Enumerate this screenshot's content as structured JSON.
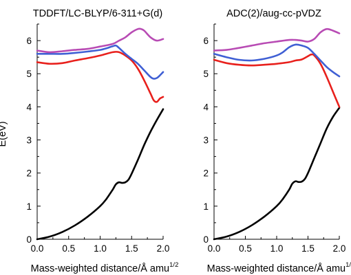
{
  "y_axis_label": "E(eV)",
  "chart_data": [
    {
      "type": "line",
      "title": "TDDFT/LC-BLYP/6-311+G(d)",
      "xlabel": "Mass-weighted distance/Å amu",
      "xlabel_sup": "1/2",
      "ylabel": "E(eV)",
      "xlim": [
        0,
        2.0
      ],
      "ylim": [
        0,
        6.5
      ],
      "xticks": [
        "0.0",
        "0.5",
        "1.0",
        "1.5",
        "2.0"
      ],
      "yticks": [
        "0",
        "1",
        "2",
        "3",
        "4",
        "5",
        "6"
      ],
      "show_y_labels": true,
      "grid": false,
      "series": [
        {
          "color": "#000000",
          "x": [
            0,
            0.2,
            0.4,
            0.6,
            0.8,
            1.0,
            1.1,
            1.2,
            1.25,
            1.3,
            1.35,
            1.4,
            1.45,
            1.5,
            1.6,
            1.7,
            1.8,
            1.9,
            2.0
          ],
          "y": [
            0,
            0.08,
            0.22,
            0.42,
            0.68,
            1.0,
            1.22,
            1.5,
            1.66,
            1.72,
            1.7,
            1.72,
            1.8,
            1.98,
            2.4,
            2.85,
            3.25,
            3.6,
            3.93
          ]
        },
        {
          "color": "#e8201c",
          "x": [
            0,
            0.2,
            0.4,
            0.6,
            0.8,
            1.0,
            1.2,
            1.3,
            1.4,
            1.5,
            1.6,
            1.7,
            1.8,
            1.85,
            1.9,
            1.95,
            2.0
          ],
          "y": [
            5.35,
            5.3,
            5.32,
            5.4,
            5.47,
            5.55,
            5.65,
            5.65,
            5.55,
            5.4,
            5.15,
            4.8,
            4.4,
            4.2,
            4.15,
            4.25,
            4.3
          ]
        },
        {
          "color": "#3f5fd4",
          "x": [
            0,
            0.2,
            0.4,
            0.6,
            0.8,
            1.0,
            1.1,
            1.2,
            1.25,
            1.3,
            1.4,
            1.5,
            1.6,
            1.7,
            1.8,
            1.85,
            1.9,
            1.95,
            2.0
          ],
          "y": [
            5.6,
            5.6,
            5.6,
            5.63,
            5.67,
            5.72,
            5.77,
            5.83,
            5.85,
            5.78,
            5.6,
            5.45,
            5.3,
            5.1,
            4.9,
            4.85,
            4.87,
            4.95,
            5.05
          ]
        },
        {
          "color": "#b84bb4",
          "x": [
            0,
            0.2,
            0.4,
            0.6,
            0.8,
            1.0,
            1.2,
            1.3,
            1.4,
            1.5,
            1.6,
            1.65,
            1.7,
            1.8,
            1.9,
            2.0
          ],
          "y": [
            5.7,
            5.65,
            5.68,
            5.72,
            5.75,
            5.82,
            5.9,
            6.0,
            6.1,
            6.25,
            6.35,
            6.35,
            6.3,
            6.1,
            6.0,
            6.05
          ]
        }
      ]
    },
    {
      "type": "line",
      "title": "ADC(2)/aug-cc-pVDZ",
      "xlabel": "Mass-weighted distance/Å amu",
      "xlabel_sup": "1/2",
      "ylabel": "",
      "xlim": [
        0,
        2.0
      ],
      "ylim": [
        0,
        6.5
      ],
      "xticks": [
        "0.0",
        "0.5",
        "1.0",
        "1.5",
        "2.0"
      ],
      "yticks": [
        "0",
        "1",
        "2",
        "3",
        "4",
        "5",
        "6"
      ],
      "show_y_labels": true,
      "grid": false,
      "series": [
        {
          "color": "#000000",
          "x": [
            0,
            0.2,
            0.4,
            0.6,
            0.8,
            1.0,
            1.1,
            1.2,
            1.25,
            1.3,
            1.35,
            1.4,
            1.45,
            1.5,
            1.6,
            1.7,
            1.8,
            1.9,
            2.0
          ],
          "y": [
            0,
            0.08,
            0.22,
            0.42,
            0.68,
            1.0,
            1.22,
            1.5,
            1.68,
            1.75,
            1.73,
            1.74,
            1.82,
            2.0,
            2.45,
            2.9,
            3.35,
            3.7,
            3.97
          ]
        },
        {
          "color": "#e8201c",
          "x": [
            0,
            0.2,
            0.4,
            0.6,
            0.8,
            1.0,
            1.2,
            1.3,
            1.4,
            1.5,
            1.55,
            1.6,
            1.7,
            1.8,
            1.9,
            2.0
          ],
          "y": [
            5.42,
            5.32,
            5.27,
            5.25,
            5.27,
            5.3,
            5.35,
            5.4,
            5.43,
            5.53,
            5.58,
            5.55,
            5.3,
            4.9,
            4.45,
            4.0
          ]
        },
        {
          "color": "#3f5fd4",
          "x": [
            0,
            0.2,
            0.4,
            0.6,
            0.8,
            1.0,
            1.1,
            1.2,
            1.3,
            1.4,
            1.5,
            1.6,
            1.7,
            1.8,
            1.9,
            2.0
          ],
          "y": [
            5.6,
            5.5,
            5.42,
            5.4,
            5.45,
            5.55,
            5.65,
            5.8,
            5.88,
            5.85,
            5.78,
            5.6,
            5.4,
            5.2,
            5.05,
            4.92
          ]
        },
        {
          "color": "#b84bb4",
          "x": [
            0,
            0.2,
            0.4,
            0.6,
            0.8,
            1.0,
            1.2,
            1.3,
            1.4,
            1.5,
            1.6,
            1.7,
            1.8,
            1.9,
            2.0
          ],
          "y": [
            5.7,
            5.72,
            5.78,
            5.85,
            5.92,
            5.97,
            6.02,
            6.02,
            6.0,
            5.97,
            6.05,
            6.25,
            6.35,
            6.3,
            6.22
          ]
        }
      ]
    }
  ]
}
